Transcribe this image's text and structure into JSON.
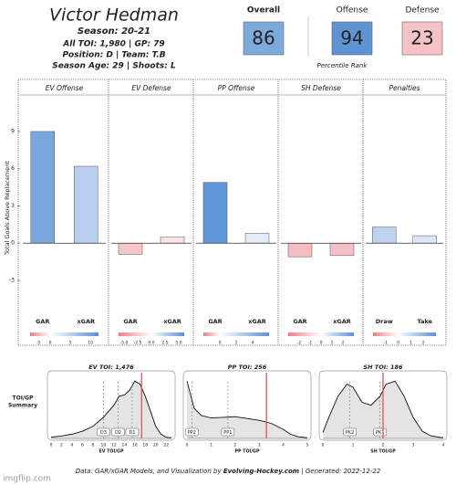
{
  "header": {
    "name": "Victor Hedman",
    "season": "Season: 20-21",
    "stats": [
      "All TOI: 1,980 | GP: 79",
      "Position: D | Team: T.B",
      "Season Age: 29 | Shoots: L"
    ],
    "ratings": [
      {
        "label": "Overall",
        "value": 86,
        "color": "#7eaadb"
      },
      {
        "label": "Offense",
        "value": 94,
        "color": "#5f93d3"
      },
      {
        "label": "Defense",
        "value": 23,
        "color": "#f5c3c5"
      }
    ],
    "rating_note": "Percentile Rank"
  },
  "chart_data": [
    {
      "type": "bar",
      "title": "EV Offense",
      "ylabel": "Total Goals Above Replacement",
      "categories": [
        "GAR",
        "xGAR"
      ],
      "values": [
        9.0,
        6.2
      ],
      "colors": [
        "#7ba7df",
        "#b9cff0"
      ],
      "ylim": [
        -5.8,
        11.5
      ],
      "yticks": [
        9,
        6,
        3,
        0,
        -3
      ],
      "legend_colors": [
        "#ec7f83",
        "#ffffff",
        "#5b8fd6"
      ],
      "legend_range": [
        -5,
        12
      ],
      "legend_ticks": [
        -3,
        0,
        5,
        10
      ]
    },
    {
      "type": "bar",
      "title": "EV Defense",
      "categories": [
        "GAR",
        "xGAR"
      ],
      "values": [
        -0.9,
        0.5
      ],
      "colors": [
        "#f6c5c7",
        "#fbe3e4"
      ],
      "ylim": [
        -5.8,
        11.5
      ],
      "legend_colors": [
        "#ec7f83",
        "#ffffff",
        "#5b8fd6"
      ],
      "legend_range": [
        -6,
        6
      ],
      "legend_ticks": [
        {
          "value": -5,
          "label": "-5.0"
        },
        {
          "value": -2.5,
          "label": "-2.5"
        },
        {
          "value": 0,
          "label": "0.0"
        },
        {
          "value": 2.5,
          "label": "2.5"
        },
        {
          "value": 5,
          "label": "5.0"
        }
      ]
    },
    {
      "type": "bar",
      "title": "PP Offense",
      "categories": [
        "GAR",
        "xGAR"
      ],
      "values": [
        4.9,
        0.8
      ],
      "colors": [
        "#5f97d8",
        "#e3ebf8"
      ],
      "ylim": [
        -5.8,
        11.5
      ],
      "legend_colors": [
        "#ec7f83",
        "#ffffff",
        "#5b8fd6"
      ],
      "legend_range": [
        -2,
        6
      ],
      "legend_ticks": [
        0,
        2,
        4
      ]
    },
    {
      "type": "bar",
      "title": "SH Defense",
      "categories": [
        "GAR",
        "xGAR"
      ],
      "values": [
        -1.1,
        -1.0
      ],
      "colors": [
        "#f4bdc0",
        "#f5c0c3"
      ],
      "ylim": [
        -5.8,
        11.5
      ],
      "legend_colors": [
        "#ec7f83",
        "#ffffff",
        "#5b8fd6"
      ],
      "legend_range": [
        -3,
        3
      ],
      "legend_ticks": [
        -2,
        -1,
        0,
        1,
        2
      ]
    },
    {
      "type": "bar",
      "title": "Penalties",
      "categories": [
        "Draw",
        "Take"
      ],
      "values": [
        1.3,
        0.6
      ],
      "colors": [
        "#bdd1f0",
        "#dbe6f7"
      ],
      "ylim": [
        -5.8,
        11.5
      ],
      "legend_colors": [
        "#ec7f83",
        "#ffffff",
        "#5b8fd6"
      ],
      "legend_range": [
        -2,
        3
      ],
      "legend_ticks": [
        -1,
        0,
        1,
        2
      ]
    },
    {
      "type": "density",
      "title": "EV TOI: 1,476",
      "xlabel": "EV TOI/GP",
      "x": [
        0,
        2,
        4,
        6,
        8,
        10,
        12,
        13,
        14,
        15,
        16,
        17,
        18,
        19,
        20,
        21,
        22,
        23
      ],
      "values": [
        0.02,
        0.04,
        0.07,
        0.12,
        0.2,
        0.35,
        0.55,
        0.7,
        0.72,
        0.8,
        0.95,
        0.9,
        0.7,
        0.45,
        0.2,
        0.07,
        0.02,
        0.01
      ],
      "xlim": [
        0,
        23
      ],
      "ylim": [
        0,
        1
      ],
      "xticks": [
        0,
        2,
        4,
        6,
        8,
        10,
        12,
        14,
        16,
        18,
        20,
        22
      ],
      "markers": [
        {
          "label": "D3",
          "value": 10
        },
        {
          "label": "D2",
          "value": 12.8
        },
        {
          "label": "D1",
          "value": 15.5
        }
      ],
      "player_value": 17.3,
      "color": "#e05252"
    },
    {
      "type": "density",
      "title": "PP TOI: 256",
      "xlabel": "PP TOI/GP",
      "x": [
        0,
        0.1,
        0.3,
        0.6,
        1,
        1.5,
        2,
        2.5,
        3,
        3.5,
        4,
        4.3,
        4.6,
        5
      ],
      "values": [
        0.95,
        0.8,
        0.5,
        0.38,
        0.34,
        0.35,
        0.36,
        0.33,
        0.3,
        0.25,
        0.15,
        0.07,
        0.03,
        0.01
      ],
      "xlim": [
        0,
        5
      ],
      "ylim": [
        0,
        1
      ],
      "xticks": [
        0,
        1,
        2,
        3,
        4,
        5
      ],
      "markers": [
        {
          "label": "PP2",
          "value": 0.2
        },
        {
          "label": "PP1",
          "value": 1.7
        }
      ],
      "player_value": 3.3,
      "color": "#e05252"
    },
    {
      "type": "density",
      "title": "SH TOI: 186",
      "xlabel": "SH TOI/GP",
      "x": [
        0,
        0.2,
        0.5,
        0.8,
        1,
        1.3,
        1.6,
        1.9,
        2.1,
        2.4,
        2.7,
        3,
        3.3,
        3.6,
        4
      ],
      "values": [
        0.1,
        0.35,
        0.7,
        0.9,
        0.85,
        0.6,
        0.55,
        0.7,
        0.9,
        0.95,
        0.7,
        0.35,
        0.12,
        0.04,
        0.01
      ],
      "xlim": [
        0,
        4
      ],
      "ylim": [
        0,
        1
      ],
      "xticks": [
        0,
        1,
        2,
        3,
        4
      ],
      "markers": [
        {
          "label": "PK2",
          "value": 0.9
        },
        {
          "label": "PK1",
          "value": 1.9
        }
      ],
      "player_value": 2.0,
      "color": "#e05252"
    }
  ],
  "summary_label": [
    "TOI/GP",
    "Summary"
  ],
  "footer": [
    "Data: GAR/xGAR Models, and Visualization by ",
    "Evolving-Hockey.com",
    " | Generated: 2022-12-22"
  ],
  "watermark": "imgflip.com"
}
